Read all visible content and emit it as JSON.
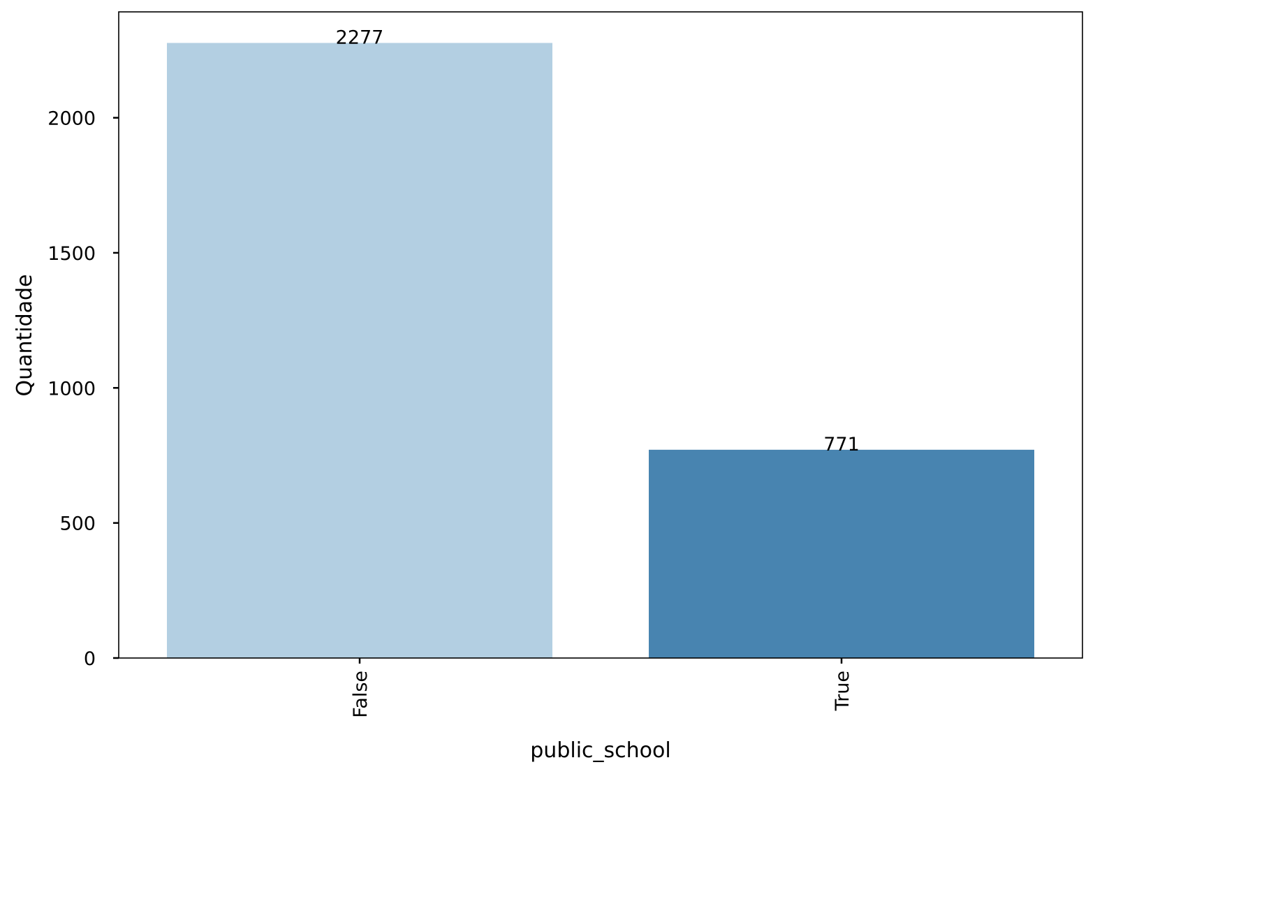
{
  "chart_data": {
    "type": "bar",
    "title": "",
    "xlabel": "public_school",
    "ylabel": "Quantidade",
    "categories": [
      "False",
      "True"
    ],
    "values": [
      2277,
      771
    ],
    "data_labels": [
      "2277",
      "771"
    ],
    "ylim": [
      0,
      2392
    ],
    "yticks": [
      0,
      500,
      1000,
      1500,
      2000
    ],
    "ytick_labels": [
      "0",
      "500",
      "1000",
      "1500",
      "2000"
    ],
    "bar_colors": [
      "#b3cfe2",
      "#4884b0"
    ],
    "grid": false,
    "legend": "none"
  }
}
